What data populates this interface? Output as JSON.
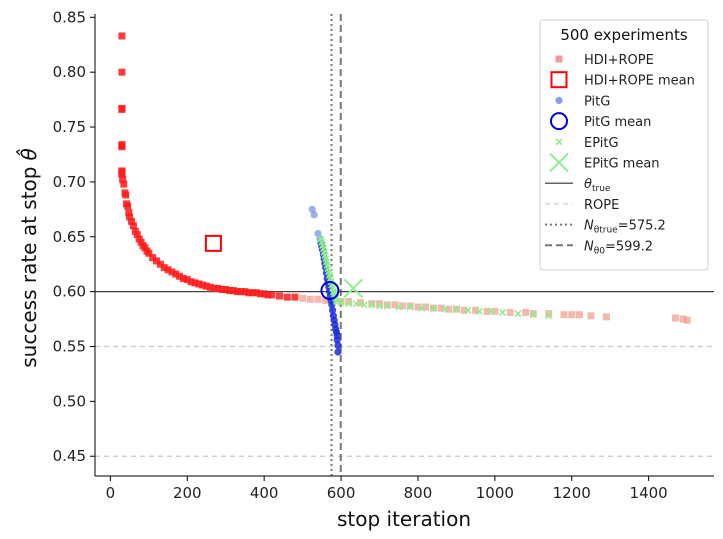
{
  "chart_data": {
    "type": "scatter",
    "xlabel": "stop iteration",
    "ylabel": "success rate at stop",
    "ylabel_symbol": "θ̂",
    "xlim": [
      -40,
      1570
    ],
    "ylim": [
      0.432,
      0.853
    ],
    "xticks": [
      0,
      200,
      400,
      600,
      800,
      1000,
      1200,
      1400
    ],
    "yticks": [
      0.45,
      0.5,
      0.55,
      0.6,
      0.65,
      0.7,
      0.75,
      0.8,
      0.85
    ],
    "xtick_labels": [
      "0",
      "200",
      "400",
      "600",
      "800",
      "1000",
      "1200",
      "1400"
    ],
    "ytick_labels": [
      "0.45",
      "0.50",
      "0.55",
      "0.60",
      "0.65",
      "0.70",
      "0.75",
      "0.80",
      "0.85"
    ],
    "grid": false,
    "legend_title": "500 experiments",
    "legend_placement": "top-right",
    "legend": [
      {
        "label": "HDI+ROPE",
        "marker": "square",
        "color": "#f08080"
      },
      {
        "label": "HDI+ROPE mean",
        "marker": "open-square",
        "color": "#ff0000"
      },
      {
        "label": "PitG",
        "marker": "circle",
        "color": "#6a8ae0"
      },
      {
        "label": "PitG mean",
        "marker": "open-circle",
        "color": "#0000dd"
      },
      {
        "label": "EPitG",
        "marker": "x",
        "color": "#90ee90"
      },
      {
        "label": "EPitG mean",
        "marker": "x",
        "color": "#90ee90"
      },
      {
        "label": "θ",
        "sub": "true",
        "marker": "solid-line",
        "color": "#333333"
      },
      {
        "label": "ROPE",
        "marker": "dashed-line",
        "color": "#cccccc"
      },
      {
        "label": "N",
        "sub": "θtrue",
        "suffix": "=575.2",
        "marker": "dotted-line",
        "color": "#777777"
      },
      {
        "label": "N",
        "sub": "θ0",
        "suffix": "=599.2",
        "marker": "dashdot-line",
        "color": "#777777"
      }
    ],
    "reference_lines": {
      "theta_true": 0.6,
      "rope": [
        0.45,
        0.55
      ],
      "N_theta_true": 575.2,
      "N_theta_0": 599.2
    },
    "means": {
      "hdi_rope": {
        "x": 268,
        "y": 0.644
      },
      "pitg": {
        "x": 571,
        "y": 0.601
      },
      "epitg": {
        "x": 632,
        "y": 0.603
      }
    },
    "series": [
      {
        "name": "HDI+ROPE",
        "x": [
          30,
          30,
          30,
          30,
          30,
          30,
          30,
          30,
          30,
          30,
          30,
          32,
          35,
          38,
          40,
          42,
          45,
          48,
          50,
          55,
          60,
          65,
          70,
          75,
          80,
          85,
          90,
          95,
          100,
          110,
          120,
          130,
          140,
          150,
          160,
          170,
          180,
          190,
          200,
          210,
          220,
          230,
          240,
          250,
          260,
          270,
          280,
          290,
          300,
          310,
          320,
          330,
          340,
          350,
          360,
          370,
          380,
          390,
          400,
          410,
          420,
          440,
          460,
          480,
          500,
          520,
          540,
          560,
          580,
          600,
          620,
          650,
          680,
          700,
          720,
          740,
          760,
          780,
          800,
          820,
          840,
          860,
          880,
          900,
          920,
          950,
          980,
          1000,
          1040,
          1080,
          1100,
          1140,
          1180,
          1200,
          1220,
          1250,
          1290,
          1470,
          1490,
          1500
        ],
        "y": [
          0.833,
          0.8,
          0.767,
          0.766,
          0.734,
          0.733,
          0.732,
          0.71,
          0.709,
          0.708,
          0.707,
          0.702,
          0.698,
          0.69,
          0.688,
          0.68,
          0.678,
          0.672,
          0.668,
          0.664,
          0.66,
          0.655,
          0.652,
          0.648,
          0.645,
          0.642,
          0.64,
          0.637,
          0.635,
          0.631,
          0.628,
          0.625,
          0.622,
          0.62,
          0.618,
          0.616,
          0.614,
          0.612,
          0.611,
          0.609,
          0.608,
          0.607,
          0.606,
          0.605,
          0.604,
          0.603,
          0.603,
          0.602,
          0.602,
          0.601,
          0.601,
          0.6,
          0.6,
          0.6,
          0.599,
          0.599,
          0.599,
          0.598,
          0.598,
          0.597,
          0.597,
          0.596,
          0.595,
          0.595,
          0.594,
          0.593,
          0.593,
          0.592,
          0.592,
          0.591,
          0.591,
          0.59,
          0.589,
          0.589,
          0.588,
          0.588,
          0.587,
          0.587,
          0.586,
          0.586,
          0.585,
          0.585,
          0.584,
          0.584,
          0.583,
          0.583,
          0.582,
          0.582,
          0.581,
          0.581,
          0.58,
          0.58,
          0.579,
          0.579,
          0.579,
          0.578,
          0.577,
          0.576,
          0.575,
          0.574
        ]
      },
      {
        "name": "PitG",
        "x": [
          525,
          530,
          540,
          545,
          548,
          550,
          552,
          554,
          556,
          558,
          560,
          562,
          564,
          566,
          568,
          570,
          572,
          574,
          576,
          578,
          580,
          582,
          584,
          586,
          588,
          590,
          590,
          592,
          592
        ],
        "y": [
          0.675,
          0.67,
          0.653,
          0.648,
          0.644,
          0.641,
          0.638,
          0.634,
          0.63,
          0.626,
          0.622,
          0.617,
          0.612,
          0.608,
          0.604,
          0.6,
          0.596,
          0.592,
          0.588,
          0.583,
          0.578,
          0.574,
          0.57,
          0.566,
          0.563,
          0.56,
          0.556,
          0.551,
          0.545
        ]
      },
      {
        "name": "EPitG",
        "x": [
          548,
          550,
          552,
          554,
          556,
          558,
          560,
          562,
          564,
          566,
          568,
          570,
          572,
          574,
          576,
          578,
          580,
          582,
          584,
          586,
          588,
          590,
          600,
          620,
          640,
          660,
          680,
          700,
          720,
          750,
          780,
          810,
          840,
          870,
          900,
          930,
          960,
          990,
          1020,
          1060,
          1100,
          1140
        ],
        "y": [
          0.648,
          0.645,
          0.642,
          0.639,
          0.636,
          0.633,
          0.63,
          0.627,
          0.624,
          0.621,
          0.618,
          0.615,
          0.612,
          0.609,
          0.606,
          0.603,
          0.6,
          0.598,
          0.596,
          0.594,
          0.592,
          0.591,
          0.59,
          0.589,
          0.589,
          0.588,
          0.588,
          0.587,
          0.587,
          0.586,
          0.586,
          0.585,
          0.585,
          0.584,
          0.584,
          0.583,
          0.582,
          0.582,
          0.581,
          0.58,
          0.579,
          0.578
        ]
      }
    ]
  }
}
